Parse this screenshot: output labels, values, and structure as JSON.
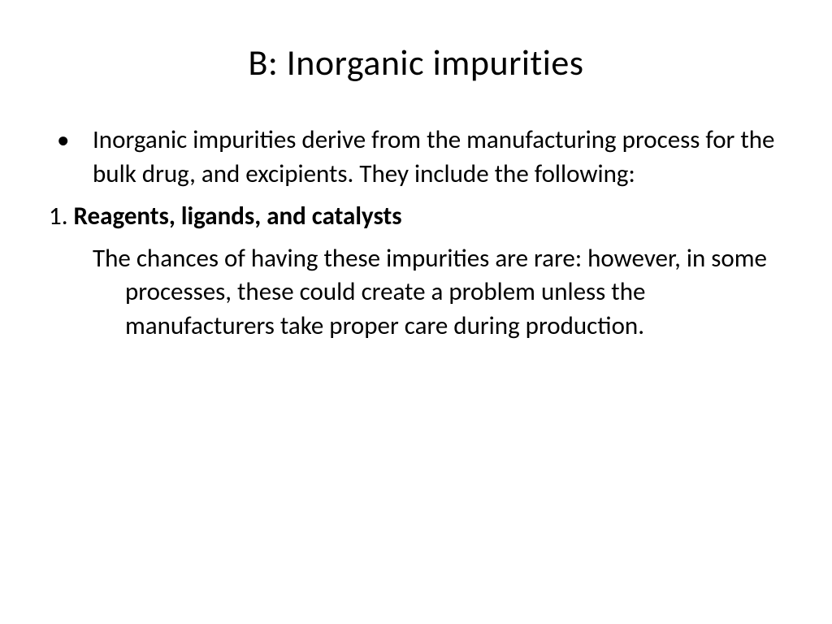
{
  "slide": {
    "title": "B: Inorganic impurities",
    "bullet_intro": "Inorganic impurities derive from the manufacturing process for the bulk drug, and excipients. They include the following:",
    "item_number": "1. ",
    "item_label": "Reagents, ligands, and catalysts",
    "item_body": "The chances of having these impurities are rare: however, in some processes, these could create a problem unless the manufacturers take proper care during production."
  },
  "style": {
    "background_color": "#ffffff",
    "text_color": "#000000",
    "title_fontsize": 44,
    "body_fontsize": 31,
    "font_family": "Calibri"
  }
}
